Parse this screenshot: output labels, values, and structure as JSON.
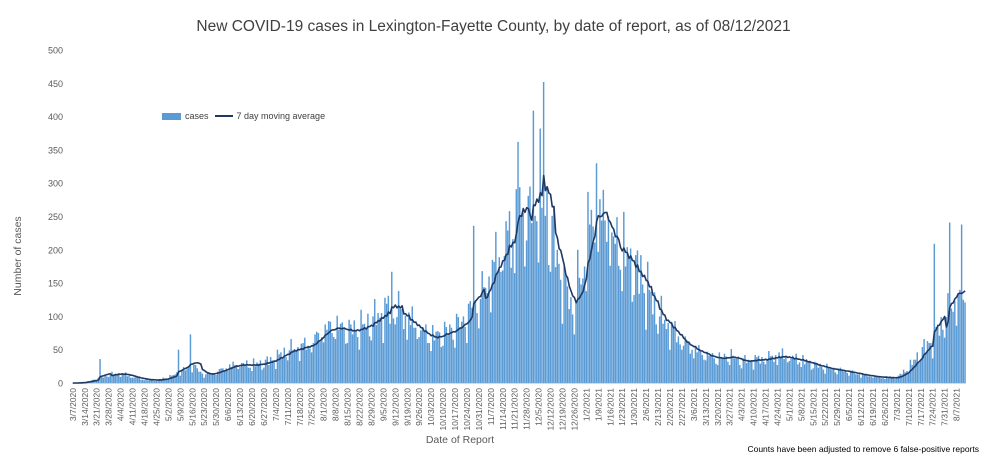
{
  "title": "New COVID-19 cases in Lexington-Fayette County, by date of report, as of 08/12/2021",
  "footnote": "Counts have been adjusted to remove 6 false-positive reports",
  "colors": {
    "bars": "#5b9bd5",
    "line": "#1f3864",
    "text": "#595959"
  },
  "chart_data": {
    "type": "bar",
    "title": "New COVID-19 cases in Lexington-Fayette County, by date of report, as of 08/12/2021",
    "xlabel": "Date of Report",
    "ylabel": "Number of cases",
    "ylim": [
      0,
      500
    ],
    "yticks": [
      0,
      50,
      100,
      150,
      200,
      250,
      300,
      350,
      400,
      450,
      500
    ],
    "grid": false,
    "legend": "upper-left",
    "x_start": "3/7/2020",
    "x_end": "8/12/2021",
    "xtick_labels": [
      "3/7/2020",
      "3/14/2020",
      "3/21/2020",
      "3/28/2020",
      "4/4/2020",
      "4/11/2020",
      "4/18/2020",
      "4/25/2020",
      "5/2/2020",
      "5/9/2020",
      "5/16/2020",
      "5/23/2020",
      "5/30/2020",
      "6/6/2020",
      "6/13/2020",
      "6/20/2020",
      "6/27/2020",
      "7/4/2020",
      "7/11/2020",
      "7/18/2020",
      "7/25/2020",
      "8/1/2020",
      "8/8/2020",
      "8/15/2020",
      "8/22/2020",
      "8/29/2020",
      "9/5/2020",
      "9/12/2020",
      "9/19/2020",
      "9/26/2020",
      "10/3/2020",
      "10/10/2020",
      "10/17/2020",
      "10/24/2020",
      "10/31/2020",
      "11/7/2020",
      "11/14/2020",
      "11/21/2020",
      "11/28/2020",
      "12/5/2020",
      "12/12/2020",
      "12/19/2020",
      "12/26/2020",
      "1/2/2021",
      "1/9/2021",
      "1/16/2021",
      "1/23/2021",
      "1/30/2021",
      "2/6/2021",
      "2/13/2021",
      "2/20/2021",
      "2/27/2021",
      "3/6/2021",
      "3/13/2021",
      "3/20/2021",
      "3/27/2021",
      "4/3/2021",
      "4/10/2021",
      "4/17/2021",
      "4/24/2021",
      "5/1/2021",
      "5/8/2021",
      "5/15/2021",
      "5/22/2021",
      "5/29/2021",
      "6/5/2021",
      "6/12/2021",
      "6/19/2021",
      "6/26/2021",
      "7/3/2021",
      "7/10/2021",
      "7/17/2021",
      "7/24/2021",
      "7/31/2021",
      "8/7/2021"
    ],
    "series": [
      {
        "name": "cases",
        "kind": "bar",
        "weekly_pattern": [
          0.72,
          1.15,
          1.12,
          1.08,
          1.05,
          1.0,
          0.88
        ],
        "anchors": [
          [
            "3/7/2020",
            0
          ],
          [
            "3/14/2020",
            1
          ],
          [
            "3/21/2020",
            6
          ],
          [
            "3/28/2020",
            12
          ],
          [
            "4/4/2020",
            14
          ],
          [
            "4/11/2020",
            9
          ],
          [
            "4/18/2020",
            5
          ],
          [
            "4/25/2020",
            4
          ],
          [
            "5/2/2020",
            8
          ],
          [
            "5/9/2020",
            16
          ],
          [
            "5/16/2020",
            26
          ],
          [
            "5/23/2020",
            12
          ],
          [
            "5/30/2020",
            16
          ],
          [
            "6/6/2020",
            24
          ],
          [
            "6/13/2020",
            28
          ],
          [
            "6/20/2020",
            26
          ],
          [
            "6/27/2020",
            30
          ],
          [
            "7/4/2020",
            36
          ],
          [
            "7/11/2020",
            48
          ],
          [
            "7/18/2020",
            52
          ],
          [
            "7/25/2020",
            58
          ],
          [
            "8/1/2020",
            78
          ],
          [
            "8/8/2020",
            84
          ],
          [
            "8/15/2020",
            78
          ],
          [
            "8/22/2020",
            80
          ],
          [
            "8/29/2020",
            90
          ],
          [
            "9/5/2020",
            104
          ],
          [
            "9/12/2020",
            112
          ],
          [
            "9/19/2020",
            94
          ],
          [
            "9/26/2020",
            80
          ],
          [
            "10/3/2020",
            66
          ],
          [
            "10/10/2020",
            74
          ],
          [
            "10/17/2020",
            80
          ],
          [
            "10/24/2020",
            96
          ],
          [
            "10/31/2020",
            118
          ],
          [
            "11/7/2020",
            160
          ],
          [
            "11/14/2020",
            200
          ],
          [
            "11/21/2020",
            228
          ],
          [
            "11/28/2020",
            250
          ],
          [
            "12/5/2020",
            282
          ],
          [
            "12/12/2020",
            230
          ],
          [
            "12/19/2020",
            150
          ],
          [
            "12/26/2020",
            105
          ],
          [
            "1/2/2021",
            190
          ],
          [
            "1/9/2021",
            258
          ],
          [
            "1/16/2021",
            210
          ],
          [
            "1/23/2021",
            195
          ],
          [
            "1/30/2021",
            170
          ],
          [
            "2/6/2021",
            140
          ],
          [
            "2/13/2021",
            102
          ],
          [
            "2/20/2021",
            82
          ],
          [
            "2/27/2021",
            62
          ],
          [
            "3/6/2021",
            50
          ],
          [
            "3/13/2021",
            42
          ],
          [
            "3/20/2021",
            36
          ],
          [
            "3/27/2021",
            40
          ],
          [
            "4/3/2021",
            32
          ],
          [
            "4/10/2021",
            34
          ],
          [
            "4/17/2021",
            36
          ],
          [
            "4/24/2021",
            40
          ],
          [
            "5/1/2021",
            38
          ],
          [
            "5/8/2021",
            33
          ],
          [
            "5/15/2021",
            28
          ],
          [
            "5/22/2021",
            22
          ],
          [
            "5/29/2021",
            19
          ],
          [
            "6/5/2021",
            16
          ],
          [
            "6/12/2021",
            12
          ],
          [
            "6/19/2021",
            10
          ],
          [
            "6/26/2021",
            8
          ],
          [
            "7/3/2021",
            8
          ],
          [
            "7/10/2021",
            22
          ],
          [
            "7/17/2021",
            45
          ],
          [
            "7/24/2021",
            65
          ],
          [
            "7/31/2021",
            95
          ],
          [
            "8/7/2021",
            125
          ],
          [
            "8/12/2021",
            130
          ]
        ],
        "notable_values": [
          [
            "3/23/2020",
            36
          ],
          [
            "5/8/2020",
            50
          ],
          [
            "5/15/2020",
            73
          ],
          [
            "9/10/2020",
            167
          ],
          [
            "10/28/2020",
            236
          ],
          [
            "11/23/2020",
            362
          ],
          [
            "12/2/2020",
            409
          ],
          [
            "12/8/2020",
            452
          ],
          [
            "12/28/2020",
            200
          ],
          [
            "1/3/2021",
            287
          ],
          [
            "1/8/2021",
            330
          ],
          [
            "1/15/2021",
            250
          ],
          [
            "2/3/2021",
            192
          ],
          [
            "7/25/2021",
            209
          ],
          [
            "8/3/2021",
            241
          ],
          [
            "8/10/2021",
            238
          ]
        ]
      },
      {
        "name": "7 day moving average",
        "kind": "line",
        "values_from": "7-day trailing mean of cases"
      }
    ]
  }
}
